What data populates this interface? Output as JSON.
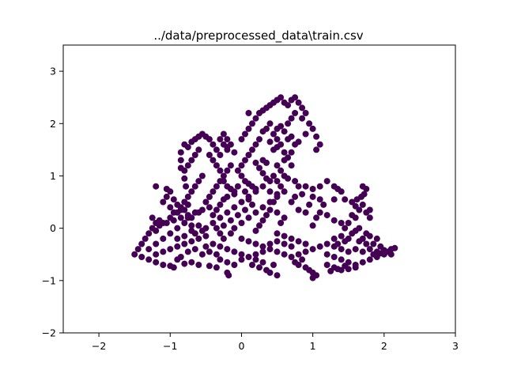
{
  "chart_data": {
    "type": "scatter",
    "title": "../data/preprocessed_data\\train.csv",
    "xlabel": "",
    "ylabel": "",
    "xlim": [
      -2.5,
      3
    ],
    "ylim": [
      -2,
      3.5
    ],
    "xticks": [
      {
        "value": -2,
        "label": "−2"
      },
      {
        "value": -1,
        "label": "−1"
      },
      {
        "value": 0,
        "label": "0"
      },
      {
        "value": 1,
        "label": "1"
      },
      {
        "value": 2,
        "label": "2"
      },
      {
        "value": 3,
        "label": "3"
      }
    ],
    "yticks": [
      {
        "value": -2,
        "label": "−2"
      },
      {
        "value": -1,
        "label": "−1"
      },
      {
        "value": 0,
        "label": "0"
      },
      {
        "value": 1,
        "label": "1"
      },
      {
        "value": 2,
        "label": "2"
      },
      {
        "value": 3,
        "label": "3"
      }
    ],
    "grid": false,
    "legend": "none",
    "marker_color": "#440154",
    "points": [
      [
        -1.5,
        -0.5
      ],
      [
        -1.45,
        -0.4
      ],
      [
        -1.4,
        -0.3
      ],
      [
        -1.35,
        -0.2
      ],
      [
        -1.3,
        -0.1
      ],
      [
        -1.25,
        0.0
      ],
      [
        -1.2,
        0.1
      ],
      [
        -1.15,
        0.15
      ],
      [
        -1.4,
        -0.55
      ],
      [
        -1.3,
        -0.6
      ],
      [
        -1.2,
        -0.65
      ],
      [
        -1.1,
        -0.7
      ],
      [
        -1.0,
        -0.72
      ],
      [
        -0.95,
        -0.75
      ],
      [
        -0.9,
        -0.6
      ],
      [
        -0.85,
        -0.55
      ],
      [
        -1.3,
        -0.4
      ],
      [
        -1.2,
        -0.3
      ],
      [
        -1.1,
        -0.2
      ],
      [
        -1.0,
        -0.1
      ],
      [
        -0.9,
        0.0
      ],
      [
        -0.8,
        0.1
      ],
      [
        -0.7,
        0.2
      ],
      [
        -0.6,
        0.3
      ],
      [
        -1.2,
        -0.5
      ],
      [
        -1.1,
        -0.45
      ],
      [
        -1.0,
        -0.4
      ],
      [
        -0.9,
        -0.35
      ],
      [
        -0.8,
        -0.3
      ],
      [
        -0.7,
        -0.25
      ],
      [
        -0.6,
        -0.2
      ],
      [
        -0.5,
        -0.15
      ],
      [
        -1.15,
        0.05
      ],
      [
        -1.05,
        0.1
      ],
      [
        -0.95,
        0.15
      ],
      [
        -0.85,
        0.2
      ],
      [
        -0.75,
        0.25
      ],
      [
        -0.65,
        0.3
      ],
      [
        -0.55,
        0.35
      ],
      [
        -0.45,
        0.4
      ],
      [
        -0.9,
        0.3
      ],
      [
        -0.85,
        0.4
      ],
      [
        -0.8,
        0.5
      ],
      [
        -0.75,
        0.6
      ],
      [
        -0.7,
        0.7
      ],
      [
        -0.65,
        0.8
      ],
      [
        -0.6,
        0.9
      ],
      [
        -0.55,
        1.0
      ],
      [
        -0.8,
        1.1
      ],
      [
        -0.75,
        1.2
      ],
      [
        -0.7,
        1.3
      ],
      [
        -0.65,
        1.4
      ],
      [
        -0.6,
        1.5
      ],
      [
        -0.8,
        1.6
      ],
      [
        -0.75,
        1.55
      ],
      [
        -0.7,
        1.65
      ],
      [
        -0.65,
        1.7
      ],
      [
        -0.6,
        1.75
      ],
      [
        -0.55,
        1.8
      ],
      [
        -0.5,
        1.75
      ],
      [
        -0.45,
        1.7
      ],
      [
        -0.4,
        1.6
      ],
      [
        -0.35,
        1.5
      ],
      [
        -0.3,
        1.4
      ],
      [
        -0.85,
        1.45
      ],
      [
        -0.85,
        1.3
      ],
      [
        -0.85,
        1.15
      ],
      [
        -0.8,
        0.95
      ],
      [
        -0.78,
        0.8
      ],
      [
        -0.75,
        0.45
      ],
      [
        -0.7,
        0.05
      ],
      [
        -0.65,
        -0.1
      ],
      [
        -0.5,
        0.5
      ],
      [
        -0.45,
        0.6
      ],
      [
        -0.4,
        0.7
      ],
      [
        -0.35,
        0.8
      ],
      [
        -0.3,
        0.9
      ],
      [
        -0.25,
        1.0
      ],
      [
        -0.2,
        1.1
      ],
      [
        -0.15,
        1.2
      ],
      [
        -0.5,
        0.0
      ],
      [
        -0.4,
        0.1
      ],
      [
        -0.3,
        0.2
      ],
      [
        -0.2,
        0.3
      ],
      [
        -0.1,
        0.4
      ],
      [
        0.0,
        0.5
      ],
      [
        0.1,
        0.6
      ],
      [
        0.2,
        0.7
      ],
      [
        -0.4,
        -0.3
      ],
      [
        -0.3,
        -0.35
      ],
      [
        -0.2,
        -0.4
      ],
      [
        -0.1,
        -0.45
      ],
      [
        0.0,
        -0.5
      ],
      [
        0.1,
        -0.55
      ],
      [
        0.2,
        -0.5
      ],
      [
        0.3,
        -0.45
      ],
      [
        -0.3,
        -0.6
      ],
      [
        -0.2,
        -0.65
      ],
      [
        -0.1,
        -0.7
      ],
      [
        0.0,
        -0.6
      ],
      [
        -0.2,
        -0.85
      ],
      [
        -0.18,
        -0.9
      ],
      [
        -0.35,
        -0.75
      ],
      [
        -0.45,
        -0.72
      ],
      [
        -0.6,
        -0.7
      ],
      [
        -0.7,
        -0.65
      ],
      [
        -0.8,
        -0.68
      ],
      [
        -0.55,
        -0.5
      ],
      [
        -0.45,
        -0.45
      ],
      [
        -0.35,
        -0.5
      ],
      [
        -0.25,
        -0.2
      ],
      [
        -0.15,
        -0.1
      ],
      [
        -0.1,
        0.0
      ],
      [
        0.0,
        0.1
      ],
      [
        0.1,
        0.2
      ],
      [
        0.2,
        0.3
      ],
      [
        0.3,
        0.4
      ],
      [
        0.4,
        0.5
      ],
      [
        0.5,
        0.6
      ],
      [
        0.6,
        0.7
      ],
      [
        0.0,
        -0.2
      ],
      [
        0.1,
        -0.25
      ],
      [
        0.2,
        -0.3
      ],
      [
        0.3,
        -0.35
      ],
      [
        0.4,
        -0.3
      ],
      [
        0.5,
        -0.25
      ],
      [
        0.6,
        -0.3
      ],
      [
        0.7,
        -0.35
      ],
      [
        0.4,
        -0.4
      ],
      [
        0.5,
        -0.45
      ],
      [
        0.6,
        -0.5
      ],
      [
        0.7,
        -0.55
      ],
      [
        0.8,
        -0.5
      ],
      [
        0.9,
        -0.45
      ],
      [
        1.0,
        -0.4
      ],
      [
        1.1,
        -0.35
      ],
      [
        0.2,
        -0.6
      ],
      [
        0.3,
        -0.65
      ],
      [
        0.35,
        -0.8
      ],
      [
        0.4,
        -0.85
      ],
      [
        0.5,
        -0.9
      ],
      [
        0.25,
        -0.75
      ],
      [
        0.15,
        -0.7
      ],
      [
        0.45,
        -0.7
      ],
      [
        0.8,
        -0.7
      ],
      [
        0.9,
        -0.75
      ],
      [
        0.95,
        -0.8
      ],
      [
        1.0,
        -0.85
      ],
      [
        1.0,
        -0.95
      ],
      [
        1.05,
        -0.9
      ],
      [
        0.85,
        -0.6
      ],
      [
        0.75,
        -0.65
      ],
      [
        1.2,
        -0.5
      ],
      [
        1.3,
        -0.55
      ],
      [
        1.4,
        -0.6
      ],
      [
        1.5,
        -0.65
      ],
      [
        1.6,
        -0.7
      ],
      [
        1.7,
        -0.65
      ],
      [
        1.8,
        -0.6
      ],
      [
        1.9,
        -0.55
      ],
      [
        1.2,
        -0.7
      ],
      [
        1.3,
        -0.75
      ],
      [
        1.4,
        -0.8
      ],
      [
        1.5,
        -0.78
      ],
      [
        1.6,
        -0.75
      ],
      [
        1.25,
        -0.82
      ],
      [
        1.35,
        -0.78
      ],
      [
        1.45,
        -0.72
      ],
      [
        1.2,
        -0.3
      ],
      [
        1.3,
        -0.35
      ],
      [
        1.4,
        -0.4
      ],
      [
        1.5,
        -0.45
      ],
      [
        1.6,
        -0.4
      ],
      [
        1.7,
        -0.45
      ],
      [
        1.8,
        -0.4
      ],
      [
        1.9,
        -0.45
      ],
      [
        2.0,
        -0.42
      ],
      [
        2.05,
        -0.45
      ],
      [
        2.1,
        -0.4
      ],
      [
        2.15,
        -0.38
      ],
      [
        2.0,
        -0.5
      ],
      [
        1.95,
        -0.48
      ],
      [
        2.1,
        -0.5
      ],
      [
        1.85,
        -0.5
      ],
      [
        1.3,
        -0.2
      ],
      [
        1.4,
        -0.15
      ],
      [
        1.5,
        -0.2
      ],
      [
        1.55,
        -0.1
      ],
      [
        1.6,
        -0.05
      ],
      [
        1.65,
        0.0
      ],
      [
        1.45,
        -0.25
      ],
      [
        1.35,
        -0.3
      ],
      [
        -0.45,
        1.4
      ],
      [
        -0.4,
        1.3
      ],
      [
        -0.35,
        1.2
      ],
      [
        -0.3,
        1.1
      ],
      [
        -0.25,
        0.9
      ],
      [
        -0.2,
        0.8
      ],
      [
        -0.15,
        0.75
      ],
      [
        -0.1,
        0.7
      ],
      [
        -0.2,
        1.5
      ],
      [
        -0.15,
        1.6
      ],
      [
        -0.2,
        1.7
      ],
      [
        -0.25,
        1.6
      ],
      [
        -0.3,
        1.7
      ],
      [
        -0.25,
        1.8
      ],
      [
        -0.2,
        1.55
      ],
      [
        -0.1,
        1.45
      ],
      [
        0.0,
        1.7
      ],
      [
        0.05,
        1.8
      ],
      [
        0.1,
        1.9
      ],
      [
        0.15,
        2.0
      ],
      [
        0.2,
        2.1
      ],
      [
        0.25,
        2.2
      ],
      [
        0.3,
        2.25
      ],
      [
        0.1,
        2.2
      ],
      [
        0.35,
        2.3
      ],
      [
        0.4,
        2.35
      ],
      [
        0.45,
        2.4
      ],
      [
        0.5,
        2.45
      ],
      [
        0.55,
        2.5
      ],
      [
        0.6,
        2.4
      ],
      [
        0.65,
        2.35
      ],
      [
        0.7,
        2.45
      ],
      [
        0.75,
        2.5
      ],
      [
        0.8,
        2.4
      ],
      [
        0.85,
        2.3
      ],
      [
        0.75,
        2.2
      ],
      [
        0.7,
        2.1
      ],
      [
        0.65,
        2.0
      ],
      [
        0.55,
        1.95
      ],
      [
        0.5,
        1.9
      ],
      [
        0.4,
        2.0
      ],
      [
        0.35,
        1.9
      ],
      [
        0.3,
        1.85
      ],
      [
        0.25,
        1.7
      ],
      [
        0.2,
        1.6
      ],
      [
        0.15,
        1.5
      ],
      [
        0.1,
        1.4
      ],
      [
        0.05,
        1.3
      ],
      [
        0.0,
        1.2
      ],
      [
        -0.05,
        1.1
      ],
      [
        0.0,
        1.0
      ],
      [
        0.05,
        0.9
      ],
      [
        0.1,
        0.85
      ],
      [
        0.15,
        0.8
      ],
      [
        0.2,
        0.75
      ],
      [
        0.3,
        0.8
      ],
      [
        0.4,
        0.7
      ],
      [
        0.5,
        0.65
      ],
      [
        0.45,
        0.5
      ],
      [
        0.4,
        0.35
      ],
      [
        0.35,
        0.25
      ],
      [
        0.3,
        0.15
      ],
      [
        0.25,
        0.05
      ],
      [
        0.2,
        -0.05
      ],
      [
        0.3,
        1.3
      ],
      [
        0.35,
        1.25
      ],
      [
        0.45,
        1.5
      ],
      [
        0.5,
        1.55
      ],
      [
        0.55,
        1.6
      ],
      [
        0.5,
        1.7
      ],
      [
        0.45,
        1.8
      ],
      [
        0.4,
        1.65
      ],
      [
        0.9,
        2.2
      ],
      [
        0.85,
        2.1
      ],
      [
        0.95,
        2.0
      ],
      [
        1.0,
        1.9
      ],
      [
        1.05,
        1.75
      ],
      [
        1.1,
        1.6
      ],
      [
        1.05,
        1.5
      ],
      [
        0.9,
        1.8
      ],
      [
        0.5,
        0.3
      ],
      [
        0.6,
        0.2
      ],
      [
        0.55,
        0.1
      ],
      [
        0.5,
        -0.1
      ],
      [
        0.6,
        -0.15
      ],
      [
        0.7,
        -0.2
      ],
      [
        0.8,
        -0.25
      ],
      [
        0.9,
        -0.3
      ],
      [
        0.6,
        1.0
      ],
      [
        0.65,
        0.95
      ],
      [
        0.55,
        1.1
      ],
      [
        0.5,
        1.2
      ],
      [
        0.6,
        1.3
      ],
      [
        0.7,
        1.2
      ],
      [
        0.75,
        0.9
      ],
      [
        0.8,
        0.8
      ],
      [
        1.0,
        0.6
      ],
      [
        1.1,
        0.8
      ],
      [
        1.2,
        0.9
      ],
      [
        1.3,
        0.8
      ],
      [
        1.35,
        0.75
      ],
      [
        1.4,
        0.7
      ],
      [
        1.45,
        0.55
      ],
      [
        1.3,
        0.55
      ],
      [
        1.1,
        0.3
      ],
      [
        1.2,
        0.25
      ],
      [
        1.3,
        0.15
      ],
      [
        1.4,
        0.1
      ],
      [
        1.0,
        0.05
      ],
      [
        1.05,
        0.2
      ],
      [
        0.9,
        0.3
      ],
      [
        0.8,
        0.35
      ],
      [
        1.1,
        0.55
      ],
      [
        1.0,
        0.75
      ],
      [
        0.9,
        0.8
      ],
      [
        0.85,
        0.65
      ],
      [
        0.75,
        0.6
      ],
      [
        0.7,
        0.5
      ],
      [
        0.95,
        0.45
      ],
      [
        1.15,
        0.45
      ],
      [
        1.7,
        0.8
      ],
      [
        1.75,
        0.75
      ],
      [
        1.72,
        0.65
      ],
      [
        1.68,
        0.6
      ],
      [
        1.62,
        0.55
      ],
      [
        1.55,
        0.5
      ],
      [
        1.6,
        0.42
      ],
      [
        1.65,
        0.35
      ],
      [
        1.6,
        0.2
      ],
      [
        1.55,
        0.25
      ],
      [
        1.75,
        0.3
      ],
      [
        1.8,
        0.35
      ],
      [
        1.7,
        0.45
      ],
      [
        1.8,
        0.2
      ],
      [
        1.5,
        0.1
      ],
      [
        1.45,
        0.0
      ],
      [
        1.75,
        -0.1
      ],
      [
        1.8,
        -0.15
      ],
      [
        1.7,
        -0.2
      ],
      [
        1.9,
        -0.2
      ],
      [
        1.85,
        -0.3
      ],
      [
        1.95,
        -0.35
      ],
      [
        1.75,
        -0.3
      ],
      [
        1.65,
        -0.25
      ],
      [
        -1.25,
        0.2
      ],
      [
        -1.2,
        -0.05
      ],
      [
        -1.1,
        0.1
      ],
      [
        -1.0,
        0.2
      ],
      [
        -0.95,
        0.3
      ],
      [
        -1.0,
        0.4
      ],
      [
        -0.9,
        0.45
      ],
      [
        -0.85,
        0.35
      ],
      [
        -1.2,
        0.8
      ],
      [
        -1.05,
        0.75
      ],
      [
        -1.0,
        0.7
      ],
      [
        -0.95,
        0.55
      ],
      [
        -1.1,
        0.5
      ],
      [
        -1.05,
        0.6
      ],
      [
        -0.8,
        0.35
      ],
      [
        -0.75,
        0.2
      ],
      [
        -0.9,
        -0.2
      ],
      [
        -0.8,
        -0.15
      ],
      [
        -0.7,
        -0.05
      ],
      [
        -0.6,
        0.05
      ],
      [
        -0.55,
        -0.05
      ],
      [
        -0.5,
        -0.35
      ],
      [
        -0.65,
        -0.4
      ],
      [
        -0.75,
        -0.45
      ],
      [
        -0.3,
        -0.1
      ],
      [
        -0.35,
        0.0
      ],
      [
        -0.25,
        0.05
      ],
      [
        -0.15,
        0.15
      ],
      [
        -0.05,
        0.25
      ],
      [
        0.05,
        0.35
      ],
      [
        0.15,
        0.45
      ],
      [
        0.1,
        0.55
      ],
      [
        -0.4,
        0.25
      ],
      [
        -0.35,
        0.35
      ],
      [
        -0.3,
        0.45
      ],
      [
        -0.25,
        0.55
      ],
      [
        -0.2,
        0.6
      ],
      [
        -0.1,
        0.65
      ],
      [
        -0.05,
        0.8
      ],
      [
        0.05,
        0.7
      ],
      [
        0.6,
        1.45
      ],
      [
        0.65,
        1.35
      ],
      [
        0.7,
        1.45
      ],
      [
        0.75,
        1.6
      ],
      [
        0.8,
        1.65
      ],
      [
        0.7,
        1.75
      ],
      [
        0.65,
        1.7
      ],
      [
        0.6,
        1.85
      ],
      [
        0.2,
        1.25
      ],
      [
        0.25,
        1.15
      ],
      [
        0.3,
        1.05
      ],
      [
        0.35,
        0.95
      ],
      [
        0.4,
        0.9
      ],
      [
        0.45,
        1.0
      ],
      [
        0.5,
        0.9
      ],
      [
        0.55,
        0.8
      ]
    ]
  }
}
